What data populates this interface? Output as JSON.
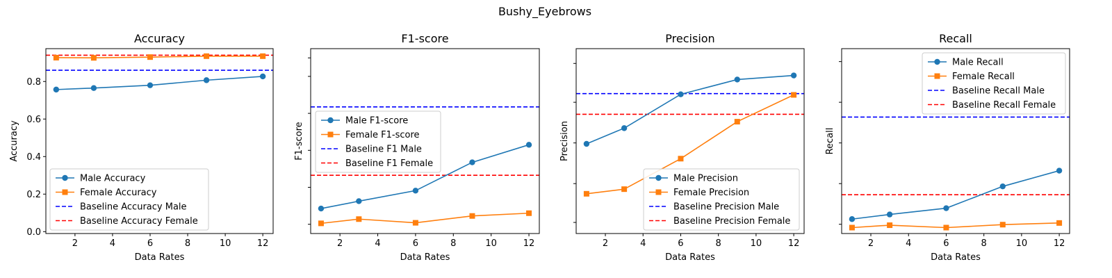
{
  "suptitle": "Bushy_Eyebrows",
  "colors": {
    "male": "#1f77b4",
    "female": "#ff7f0e",
    "baseline_male": "#0000ff",
    "baseline_female": "#ff0000"
  },
  "chart_data": [
    {
      "type": "line",
      "title": "Accuracy",
      "xlabel": "Data Rates",
      "ylabel": "Accuracy",
      "xlim": [
        0.45,
        12.55
      ],
      "ylim": [
        -0.01,
        0.975
      ],
      "x": [
        1,
        3,
        6,
        9,
        12
      ],
      "xticks": [
        2,
        4,
        6,
        8,
        10,
        12
      ],
      "yticks": [
        0.0,
        0.2,
        0.4,
        0.6,
        0.8
      ],
      "ytick_labels": [
        "0.0",
        "0.2",
        "0.4",
        "0.6",
        "0.8"
      ],
      "series": [
        {
          "name": "Male Accuracy",
          "values": [
            0.757,
            0.765,
            0.78,
            0.807,
            0.827
          ],
          "marker": "circle"
        },
        {
          "name": "Female Accuracy",
          "values": [
            0.927,
            0.926,
            0.93,
            0.935,
            0.935
          ],
          "marker": "square"
        }
      ],
      "baselines": [
        {
          "name": "Baseline Accuracy Male",
          "value": 0.86,
          "color": "baseline_male"
        },
        {
          "name": "Baseline Accuracy Female",
          "value": 0.94,
          "color": "baseline_female"
        }
      ],
      "legend": "lower-left"
    },
    {
      "type": "line",
      "title": "F1-score",
      "xlabel": "Data Rates",
      "ylabel": "F1-score",
      "xlim": [
        0.45,
        12.55
      ],
      "ylim": [
        0.0,
        1.0
      ],
      "x": [
        1,
        3,
        6,
        9,
        12
      ],
      "xticks": [
        2,
        4,
        6,
        8,
        10,
        12
      ],
      "yticks": [
        0.05,
        0.25,
        0.45,
        0.65,
        0.85,
        0.95
      ],
      "ytick_labels": [],
      "series": [
        {
          "name": "Male F1-score",
          "values": [
            0.135,
            0.175,
            0.232,
            0.385,
            0.48
          ],
          "marker": "circle"
        },
        {
          "name": "Female F1-score",
          "values": [
            0.055,
            0.078,
            0.058,
            0.095,
            0.11
          ],
          "marker": "square"
        }
      ],
      "baselines": [
        {
          "name": "Baseline F1 Male",
          "value": 0.685,
          "color": "baseline_male"
        },
        {
          "name": "Baseline F1 Female",
          "value": 0.315,
          "color": "baseline_female"
        }
      ],
      "legend": "center-left"
    },
    {
      "type": "line",
      "title": "Precision",
      "xlabel": "Data Rates",
      "ylabel": "Precision",
      "xlim": [
        0.45,
        12.55
      ],
      "ylim": [
        0.0,
        1.0
      ],
      "x": [
        1,
        3,
        6,
        9,
        12
      ],
      "xticks": [
        2,
        4,
        6,
        8,
        10,
        12
      ],
      "yticks": [
        0.06,
        0.27,
        0.49,
        0.71,
        0.92
      ],
      "ytick_labels": [],
      "series": [
        {
          "name": "Male Precision",
          "values": [
            0.485,
            0.57,
            0.753,
            0.833,
            0.855
          ],
          "marker": "circle"
        },
        {
          "name": "Female Precision",
          "values": [
            0.215,
            0.24,
            0.405,
            0.605,
            0.75
          ],
          "marker": "square"
        }
      ],
      "baselines": [
        {
          "name": "Baseline Precision Male",
          "value": 0.757,
          "color": "baseline_male"
        },
        {
          "name": "Baseline Precision Female",
          "value": 0.645,
          "color": "baseline_female"
        }
      ],
      "legend": "lower-right"
    },
    {
      "type": "line",
      "title": "Recall",
      "xlabel": "Data Rates",
      "ylabel": "Recall",
      "xlim": [
        0.45,
        12.55
      ],
      "ylim": [
        0.0,
        1.0
      ],
      "x": [
        1,
        3,
        6,
        9,
        12
      ],
      "xticks": [
        2,
        4,
        6,
        8,
        10,
        12
      ],
      "yticks": [
        0.05,
        0.27,
        0.49,
        0.71,
        0.93
      ],
      "ytick_labels": [],
      "series": [
        {
          "name": "Male Recall",
          "values": [
            0.078,
            0.103,
            0.137,
            0.255,
            0.34
          ],
          "marker": "circle"
        },
        {
          "name": "Female Recall",
          "values": [
            0.032,
            0.045,
            0.032,
            0.048,
            0.057
          ],
          "marker": "square"
        }
      ],
      "baselines": [
        {
          "name": "Baseline Recall Male",
          "value": 0.63,
          "color": "baseline_male"
        },
        {
          "name": "Baseline Recall Female",
          "value": 0.21,
          "color": "baseline_female"
        }
      ],
      "legend": "upper-right"
    }
  ]
}
